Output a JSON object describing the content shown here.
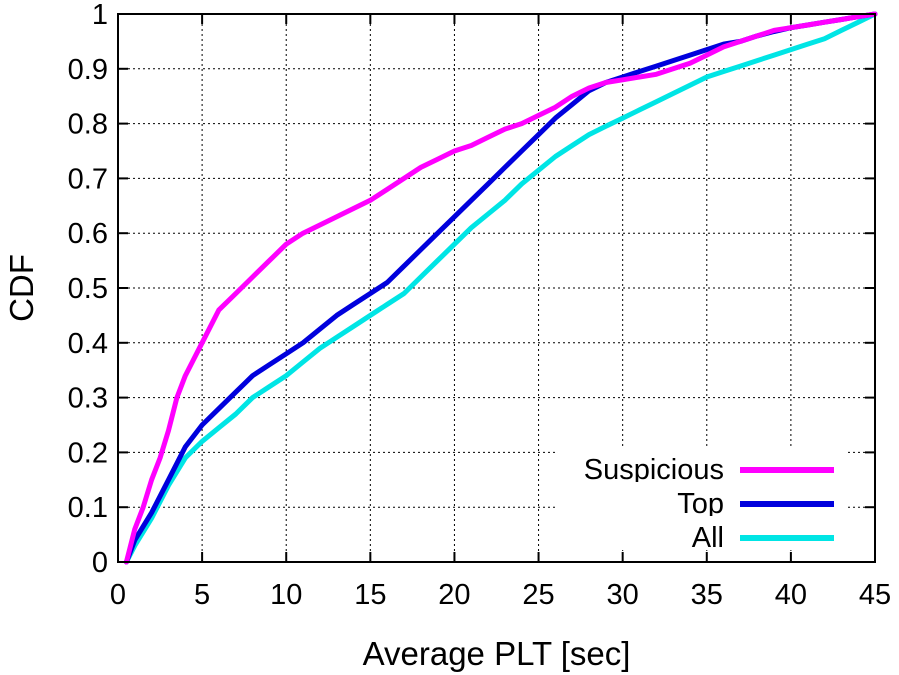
{
  "chart_data": {
    "type": "line",
    "title": "",
    "xlabel": "Average PLT [sec]",
    "ylabel": "CDF",
    "xlim": [
      0,
      45
    ],
    "ylim": [
      0,
      1
    ],
    "xticks": [
      "0",
      "5",
      "10",
      "15",
      "20",
      "25",
      "30",
      "35",
      "40",
      "45"
    ],
    "yticks": [
      "0",
      "0.1",
      "0.2",
      "0.3",
      "0.4",
      "0.5",
      "0.6",
      "0.7",
      "0.8",
      "0.9",
      "1"
    ],
    "grid": true,
    "legend_position": "bottom-right",
    "series": [
      {
        "name": "Suspicious",
        "color": "#ff00ff",
        "points": [
          [
            0.5,
            0
          ],
          [
            1,
            0.06
          ],
          [
            1.5,
            0.1
          ],
          [
            2,
            0.15
          ],
          [
            2.5,
            0.19
          ],
          [
            3,
            0.24
          ],
          [
            3.5,
            0.3
          ],
          [
            4,
            0.34
          ],
          [
            4.5,
            0.37
          ],
          [
            5,
            0.4
          ],
          [
            6,
            0.46
          ],
          [
            7,
            0.49
          ],
          [
            8,
            0.52
          ],
          [
            9,
            0.55
          ],
          [
            10,
            0.58
          ],
          [
            11,
            0.6
          ],
          [
            12,
            0.615
          ],
          [
            13,
            0.63
          ],
          [
            14,
            0.645
          ],
          [
            15,
            0.66
          ],
          [
            16,
            0.68
          ],
          [
            17,
            0.7
          ],
          [
            18,
            0.72
          ],
          [
            19,
            0.735
          ],
          [
            20,
            0.75
          ],
          [
            21,
            0.76
          ],
          [
            22,
            0.775
          ],
          [
            23,
            0.79
          ],
          [
            24,
            0.8
          ],
          [
            25,
            0.815
          ],
          [
            26,
            0.83
          ],
          [
            27,
            0.85
          ],
          [
            28,
            0.865
          ],
          [
            29,
            0.875
          ],
          [
            30,
            0.88
          ],
          [
            31,
            0.885
          ],
          [
            32,
            0.89
          ],
          [
            33,
            0.9
          ],
          [
            34,
            0.91
          ],
          [
            35,
            0.925
          ],
          [
            36,
            0.94
          ],
          [
            37,
            0.95
          ],
          [
            38,
            0.96
          ],
          [
            39,
            0.97
          ],
          [
            40,
            0.975
          ],
          [
            41,
            0.98
          ],
          [
            42,
            0.985
          ],
          [
            43,
            0.99
          ],
          [
            44,
            0.995
          ],
          [
            45,
            1
          ]
        ]
      },
      {
        "name": "Top",
        "color": "#0000dd",
        "points": [
          [
            0.5,
            0
          ],
          [
            1,
            0.04
          ],
          [
            2,
            0.09
          ],
          [
            3,
            0.15
          ],
          [
            4,
            0.21
          ],
          [
            5,
            0.25
          ],
          [
            6,
            0.28
          ],
          [
            7,
            0.31
          ],
          [
            8,
            0.34
          ],
          [
            9,
            0.36
          ],
          [
            10,
            0.38
          ],
          [
            11,
            0.4
          ],
          [
            12,
            0.425
          ],
          [
            13,
            0.45
          ],
          [
            14,
            0.47
          ],
          [
            15,
            0.49
          ],
          [
            16,
            0.51
          ],
          [
            17,
            0.54
          ],
          [
            18,
            0.57
          ],
          [
            19,
            0.6
          ],
          [
            20,
            0.63
          ],
          [
            21,
            0.66
          ],
          [
            22,
            0.69
          ],
          [
            23,
            0.72
          ],
          [
            24,
            0.75
          ],
          [
            25,
            0.78
          ],
          [
            26,
            0.81
          ],
          [
            27,
            0.835
          ],
          [
            28,
            0.86
          ],
          [
            29,
            0.875
          ],
          [
            30,
            0.885
          ],
          [
            31,
            0.895
          ],
          [
            32,
            0.905
          ],
          [
            33,
            0.915
          ],
          [
            34,
            0.925
          ],
          [
            35,
            0.935
          ],
          [
            36,
            0.945
          ],
          [
            37,
            0.95
          ],
          [
            38,
            0.96
          ],
          [
            39,
            0.968
          ],
          [
            40,
            0.975
          ],
          [
            41,
            0.98
          ],
          [
            42,
            0.985
          ],
          [
            43,
            0.99
          ],
          [
            44,
            0.995
          ],
          [
            45,
            1
          ]
        ]
      },
      {
        "name": "All",
        "color": "#00e5e5",
        "points": [
          [
            0.5,
            0
          ],
          [
            1,
            0.03
          ],
          [
            2,
            0.08
          ],
          [
            3,
            0.14
          ],
          [
            4,
            0.19
          ],
          [
            5,
            0.22
          ],
          [
            6,
            0.245
          ],
          [
            7,
            0.27
          ],
          [
            8,
            0.3
          ],
          [
            9,
            0.32
          ],
          [
            10,
            0.34
          ],
          [
            11,
            0.365
          ],
          [
            12,
            0.39
          ],
          [
            13,
            0.41
          ],
          [
            14,
            0.43
          ],
          [
            15,
            0.45
          ],
          [
            16,
            0.47
          ],
          [
            17,
            0.49
          ],
          [
            18,
            0.52
          ],
          [
            19,
            0.55
          ],
          [
            20,
            0.58
          ],
          [
            21,
            0.61
          ],
          [
            22,
            0.635
          ],
          [
            23,
            0.66
          ],
          [
            24,
            0.69
          ],
          [
            25,
            0.715
          ],
          [
            26,
            0.74
          ],
          [
            27,
            0.76
          ],
          [
            28,
            0.78
          ],
          [
            29,
            0.795
          ],
          [
            30,
            0.81
          ],
          [
            31,
            0.825
          ],
          [
            32,
            0.84
          ],
          [
            33,
            0.855
          ],
          [
            34,
            0.87
          ],
          [
            35,
            0.885
          ],
          [
            36,
            0.895
          ],
          [
            37,
            0.905
          ],
          [
            38,
            0.915
          ],
          [
            39,
            0.925
          ],
          [
            40,
            0.935
          ],
          [
            41,
            0.945
          ],
          [
            42,
            0.955
          ],
          [
            43,
            0.97
          ],
          [
            44,
            0.985
          ],
          [
            45,
            1
          ]
        ]
      }
    ]
  }
}
